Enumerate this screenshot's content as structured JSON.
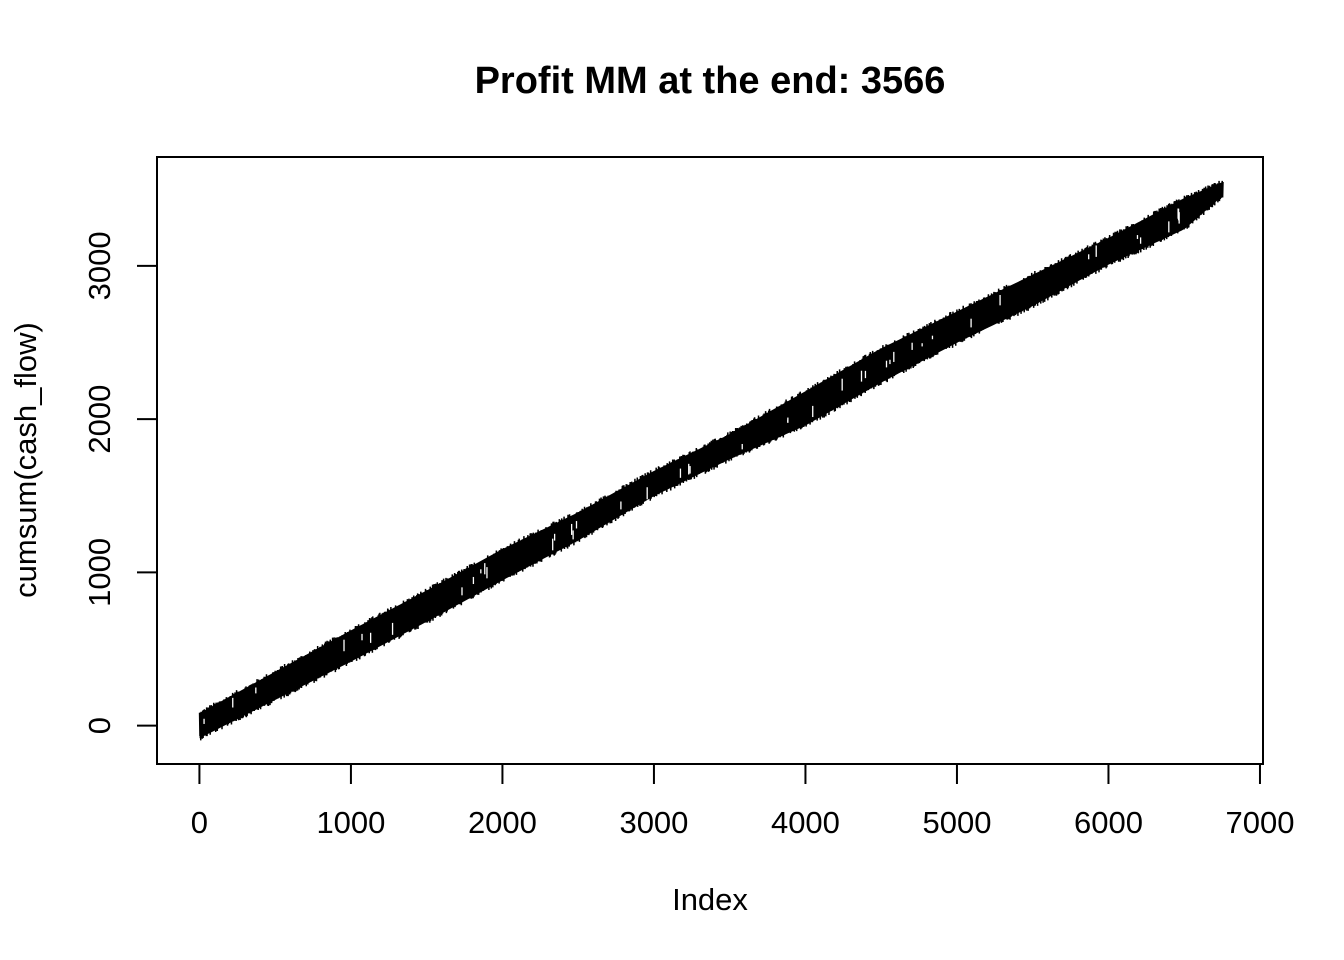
{
  "chart_data": {
    "type": "line",
    "title": "Profit MM at the end: 3566",
    "xlabel": "Index",
    "ylabel": "cumsum(cash_flow)",
    "xlim": [
      -280,
      7020
    ],
    "ylim": [
      -250,
      3710
    ],
    "x_ticks": [
      0,
      1000,
      2000,
      3000,
      4000,
      5000,
      6000,
      7000
    ],
    "y_ticks": [
      0,
      1000,
      2000,
      3000
    ],
    "x_tick_labels": [
      "0",
      "1000",
      "2000",
      "3000",
      "4000",
      "5000",
      "6000",
      "7000"
    ],
    "y_tick_labels": [
      "0",
      "1000",
      "2000",
      "3000"
    ],
    "grid": false,
    "legend": "none",
    "line_color": "#000000",
    "series": [
      {
        "x": [
          1,
          500,
          1000,
          1500,
          2000,
          2500,
          3000,
          3500,
          4000,
          4500,
          5000,
          5500,
          6000,
          6500,
          6756
        ],
        "y": [
          0,
          260,
          520,
          780,
          1050,
          1300,
          1580,
          1820,
          2060,
          2350,
          2600,
          2840,
          3100,
          3340,
          3500
        ],
        "band_upper": [
          100,
          370,
          640,
          900,
          1170,
          1410,
          1680,
          1920,
          2200,
          2480,
          2720,
          2960,
          3200,
          3460,
          3566
        ],
        "band_lower": [
          -100,
          150,
          400,
          660,
          930,
          1190,
          1480,
          1720,
          1940,
          2220,
          2480,
          2720,
          2990,
          3220,
          3440
        ]
      }
    ]
  }
}
